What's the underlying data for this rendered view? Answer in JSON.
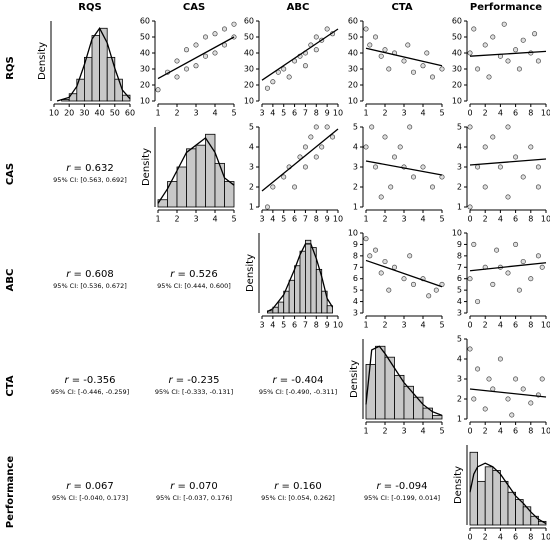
{
  "variables": [
    "RQS",
    "CAS",
    "ABC",
    "CTA",
    "Performance"
  ],
  "correlations": [
    {
      "symbol": "r",
      "text": " = 0.632",
      "ci": "95% CI: [0.563, 0.692]"
    },
    {
      "symbol": "r",
      "text": " = 0.608",
      "ci": "95% CI: [0.536, 0.672]"
    },
    {
      "symbol": "r",
      "text": " = 0.526",
      "ci": "95% CI: [0.444, 0.600]"
    },
    {
      "symbol": "r",
      "text": " = -0.356",
      "ci": "95% CI: [-0.446, -0.259]"
    },
    {
      "symbol": "r",
      "text": " = -0.235",
      "ci": "95% CI: [-0.333, -0.131]"
    },
    {
      "symbol": "r",
      "text": " = -0.404",
      "ci": "95% CI: [-0.490, -0.311]"
    },
    {
      "symbol": "r",
      "text": " = 0.067",
      "ci": "95% CI: [-0.040, 0.173]"
    },
    {
      "symbol": "r",
      "text": " = 0.070",
      "ci": "95% CI: [-0.037, 0.176]"
    },
    {
      "symbol": "r",
      "text": " = 0.160",
      "ci": "95% CI: [0.054, 0.262]"
    },
    {
      "symbol": "r",
      "text": " = -0.094",
      "ci": "95% CI: [-0.199, 0.014]"
    }
  ],
  "chart_data": [
    {
      "type": "histogram",
      "ylabel": "Density",
      "color": "#c8c8c8",
      "bins": [
        15,
        20,
        25,
        30,
        35,
        40,
        45,
        50,
        55,
        60
      ],
      "counts": [
        0.02,
        0.1,
        0.3,
        0.6,
        0.9,
        1.0,
        0.6,
        0.3,
        0.08
      ],
      "xlim": [
        10,
        60
      ],
      "xticks": [
        10,
        20,
        30,
        40,
        50,
        60
      ],
      "ylim": [
        0,
        1.1
      ],
      "density": {
        "x": [
          12,
          20,
          25,
          30,
          35,
          40,
          45,
          50,
          55,
          60
        ],
        "y": [
          0,
          0.05,
          0.2,
          0.5,
          0.85,
          1.0,
          0.8,
          0.45,
          0.15,
          0.03
        ]
      }
    },
    {
      "type": "scatter",
      "xlim": [
        1,
        5
      ],
      "xticks": [
        1,
        2,
        3,
        4,
        5
      ],
      "ylim": [
        10,
        60
      ],
      "yticks": [
        10,
        20,
        30,
        40,
        50,
        60
      ],
      "x": [
        1,
        1.5,
        2,
        2,
        2.5,
        2.5,
        3,
        3,
        3.5,
        3.5,
        4,
        4,
        4.5,
        4.5,
        5,
        5
      ],
      "y": [
        17,
        28,
        25,
        35,
        30,
        42,
        32,
        45,
        38,
        50,
        40,
        52,
        45,
        55,
        50,
        58
      ],
      "line": {
        "x": [
          1,
          5
        ],
        "y": [
          24,
          50
        ]
      }
    },
    {
      "type": "scatter",
      "xlim": [
        3,
        10
      ],
      "xticks": [
        3,
        4,
        5,
        6,
        7,
        8,
        9,
        10
      ],
      "ylim": [
        10,
        60
      ],
      "yticks": [
        10,
        20,
        30,
        40,
        50,
        60
      ],
      "x": [
        3.5,
        4,
        4.5,
        5,
        5.5,
        6,
        6.5,
        7,
        7,
        7.5,
        8,
        8,
        8.5,
        9,
        9.5
      ],
      "y": [
        18,
        22,
        28,
        30,
        25,
        35,
        38,
        40,
        32,
        45,
        42,
        50,
        48,
        55,
        52
      ],
      "line": {
        "x": [
          3,
          10
        ],
        "y": [
          23,
          55
        ]
      }
    },
    {
      "type": "scatter",
      "xlim": [
        1,
        5
      ],
      "xticks": [
        1,
        2,
        3,
        4,
        5
      ],
      "ylim": [
        10,
        60
      ],
      "yticks": [
        10,
        20,
        30,
        40,
        50,
        60
      ],
      "x": [
        1,
        1.2,
        1.5,
        1.8,
        2,
        2.2,
        2.5,
        3,
        3.2,
        3.5,
        4,
        4.2,
        4.5,
        5
      ],
      "y": [
        55,
        45,
        50,
        38,
        42,
        30,
        40,
        35,
        45,
        28,
        32,
        40,
        25,
        30
      ],
      "line": {
        "x": [
          1,
          5
        ],
        "y": [
          43,
          32
        ]
      }
    },
    {
      "type": "scatter",
      "xlim": [
        0,
        10
      ],
      "xticks": [
        0,
        2,
        4,
        6,
        8,
        10
      ],
      "ylim": [
        10,
        60
      ],
      "yticks": [
        10,
        20,
        30,
        40,
        50,
        60
      ],
      "x": [
        0,
        0.5,
        1,
        2,
        2.5,
        3,
        4,
        4.5,
        5,
        6,
        6.5,
        7,
        8,
        8.5,
        9
      ],
      "y": [
        40,
        55,
        30,
        45,
        25,
        50,
        38,
        58,
        35,
        42,
        30,
        48,
        40,
        52,
        35
      ],
      "line": {
        "x": [
          0,
          10
        ],
        "y": [
          38,
          41
        ]
      }
    },
    {
      "type": "histogram",
      "ylabel": "Density",
      "color": "#c8c8c8",
      "bins": [
        1,
        1.5,
        2,
        2.5,
        3,
        3.5,
        4,
        4.5,
        5
      ],
      "counts": [
        0.1,
        0.35,
        0.55,
        0.8,
        0.85,
        1.0,
        0.6,
        0.35
      ],
      "xlim": [
        1,
        5
      ],
      "xticks": [
        1,
        2,
        3,
        4,
        5
      ],
      "ylim": [
        0,
        1.1
      ],
      "density": {
        "x": [
          1,
          1.5,
          2,
          2.5,
          3,
          3.5,
          4,
          4.5,
          5
        ],
        "y": [
          0.05,
          0.25,
          0.5,
          0.75,
          0.85,
          0.95,
          0.75,
          0.4,
          0.3
        ]
      }
    },
    {
      "type": "scatter",
      "xlim": [
        3,
        10
      ],
      "xticks": [
        3,
        4,
        5,
        6,
        7,
        8,
        9,
        10
      ],
      "ylim": [
        1,
        5
      ],
      "yticks": [
        1,
        2,
        3,
        4,
        5
      ],
      "x": [
        3.5,
        4,
        5,
        5.5,
        6,
        6.5,
        7,
        7,
        7.5,
        8,
        8,
        8.5,
        9,
        9.5
      ],
      "y": [
        1,
        2,
        2.5,
        3,
        2,
        3.5,
        4,
        3,
        4.5,
        5,
        3.5,
        4,
        5,
        4.5
      ],
      "line": {
        "x": [
          3,
          10
        ],
        "y": [
          1.8,
          4.9
        ]
      }
    },
    {
      "type": "scatter",
      "xlim": [
        1,
        5
      ],
      "xticks": [
        1,
        2,
        3,
        4,
        5
      ],
      "ylim": [
        1,
        5
      ],
      "yticks": [
        1,
        2,
        3,
        4,
        5
      ],
      "x": [
        1,
        1.3,
        1.5,
        2,
        2.3,
        2.5,
        3,
        3.3,
        3.5,
        4,
        4.5,
        5,
        1.8,
        2.8
      ],
      "y": [
        4,
        5,
        3,
        4.5,
        2,
        3.5,
        3,
        5,
        2.5,
        3,
        2,
        2.5,
        1.5,
        4
      ],
      "line": {
        "x": [
          1,
          5
        ],
        "y": [
          3.3,
          2.6
        ]
      }
    },
    {
      "type": "scatter",
      "xlim": [
        0,
        10
      ],
      "xticks": [
        0,
        2,
        4,
        6,
        8,
        10
      ],
      "ylim": [
        1,
        5
      ],
      "yticks": [
        1,
        2,
        3,
        4,
        5
      ],
      "x": [
        0,
        0,
        1,
        2,
        2,
        3,
        4,
        5,
        5,
        6,
        7,
        8,
        9,
        9
      ],
      "y": [
        5,
        1,
        3,
        4,
        2,
        4.5,
        3,
        5,
        1.5,
        3.5,
        2.5,
        4,
        3,
        2
      ],
      "line": {
        "x": [
          0,
          10
        ],
        "y": [
          3.1,
          3.4
        ]
      }
    },
    {
      "type": "histogram",
      "ylabel": "Density",
      "color": "#c8c8c8",
      "bins": [
        3.5,
        4,
        4.5,
        5,
        5.5,
        6,
        6.5,
        7,
        7.5,
        8,
        8.5,
        9,
        9.5
      ],
      "counts": [
        0.03,
        0.08,
        0.15,
        0.3,
        0.45,
        0.65,
        0.85,
        1.0,
        0.9,
        0.6,
        0.3,
        0.1
      ],
      "xlim": [
        3,
        10
      ],
      "xticks": [
        3,
        4,
        5,
        6,
        7,
        8,
        9,
        10
      ],
      "ylim": [
        0,
        1.1
      ],
      "density": {
        "x": [
          3.5,
          4,
          5,
          6,
          6.5,
          7,
          7.5,
          8,
          8.5,
          9,
          9.5
        ],
        "y": [
          0.02,
          0.06,
          0.25,
          0.6,
          0.8,
          0.95,
          0.95,
          0.75,
          0.5,
          0.2,
          0.08
        ]
      }
    },
    {
      "type": "scatter",
      "xlim": [
        1,
        5
      ],
      "xticks": [
        1,
        2,
        3,
        4,
        5
      ],
      "ylim": [
        3,
        10
      ],
      "yticks": [
        3,
        4,
        5,
        6,
        7,
        8,
        9,
        10
      ],
      "x": [
        1,
        1.2,
        1.5,
        1.8,
        2,
        2.2,
        2.5,
        3,
        3.3,
        3.5,
        4,
        4.3,
        4.7,
        5
      ],
      "y": [
        9.5,
        8,
        8.5,
        6.5,
        7.5,
        5,
        7,
        6,
        8,
        5.5,
        6,
        4.5,
        5,
        5.5
      ],
      "line": {
        "x": [
          1,
          5
        ],
        "y": [
          7.6,
          5.3
        ]
      }
    },
    {
      "type": "scatter",
      "xlim": [
        0,
        10
      ],
      "xticks": [
        0,
        2,
        4,
        6,
        8,
        10
      ],
      "ylim": [
        3,
        10
      ],
      "yticks": [
        3,
        4,
        5,
        6,
        7,
        8,
        9,
        10
      ],
      "x": [
        0,
        0.5,
        1,
        2,
        3,
        3.5,
        4,
        5,
        6,
        6.5,
        7,
        8,
        9,
        9.5
      ],
      "y": [
        6,
        9,
        4,
        7,
        5.5,
        8.5,
        7,
        6.5,
        9,
        5,
        7.5,
        6,
        8,
        7
      ],
      "line": {
        "x": [
          0,
          10
        ],
        "y": [
          6.7,
          7.4
        ]
      }
    },
    {
      "type": "histogram",
      "ylabel": "Density",
      "color": "#c8c8c8",
      "bins": [
        1,
        1.5,
        2,
        2.5,
        3,
        3.5,
        4,
        4.5,
        5
      ],
      "counts": [
        0.75,
        1.0,
        0.85,
        0.6,
        0.45,
        0.3,
        0.15,
        0.05
      ],
      "xlim": [
        1,
        5
      ],
      "xticks": [
        1,
        2,
        3,
        4,
        5
      ],
      "ylim": [
        0,
        1.1
      ],
      "density": {
        "x": [
          1,
          1.3,
          1.7,
          2,
          2.5,
          3,
          3.5,
          4,
          4.5,
          5
        ],
        "y": [
          0.2,
          0.95,
          1.0,
          0.9,
          0.7,
          0.5,
          0.35,
          0.2,
          0.1,
          0.05
        ]
      }
    },
    {
      "type": "scatter",
      "xlim": [
        0,
        10
      ],
      "xticks": [
        0,
        2,
        4,
        6,
        8,
        10
      ],
      "ylim": [
        1,
        5
      ],
      "yticks": [
        1,
        2,
        3,
        4,
        5
      ],
      "x": [
        0,
        0.5,
        1,
        2,
        2.5,
        3,
        4,
        5,
        5.5,
        6,
        7,
        8,
        9,
        9.5
      ],
      "y": [
        4.5,
        2,
        3.5,
        1.5,
        3,
        2.5,
        4,
        2,
        1.2,
        3,
        2.5,
        1.8,
        2.2,
        3
      ],
      "line": {
        "x": [
          0,
          10
        ],
        "y": [
          2.5,
          2.1
        ]
      }
    },
    {
      "type": "histogram",
      "ylabel": "Density",
      "color": "#c8c8c8",
      "bins": [
        0,
        1,
        2,
        3,
        4,
        5,
        6,
        7,
        8,
        9,
        10
      ],
      "counts": [
        1.0,
        0.6,
        0.8,
        0.75,
        0.6,
        0.45,
        0.35,
        0.25,
        0.12,
        0.05
      ],
      "xlim": [
        0,
        10
      ],
      "xticks": [
        0,
        2,
        4,
        6,
        8,
        10
      ],
      "ylim": [
        0,
        1.1
      ],
      "density": {
        "x": [
          0,
          0.5,
          1,
          2,
          3,
          4,
          5,
          6,
          7,
          8,
          9,
          10
        ],
        "y": [
          0.45,
          0.7,
          0.8,
          0.85,
          0.8,
          0.7,
          0.55,
          0.4,
          0.3,
          0.18,
          0.08,
          0.02
        ]
      }
    }
  ]
}
